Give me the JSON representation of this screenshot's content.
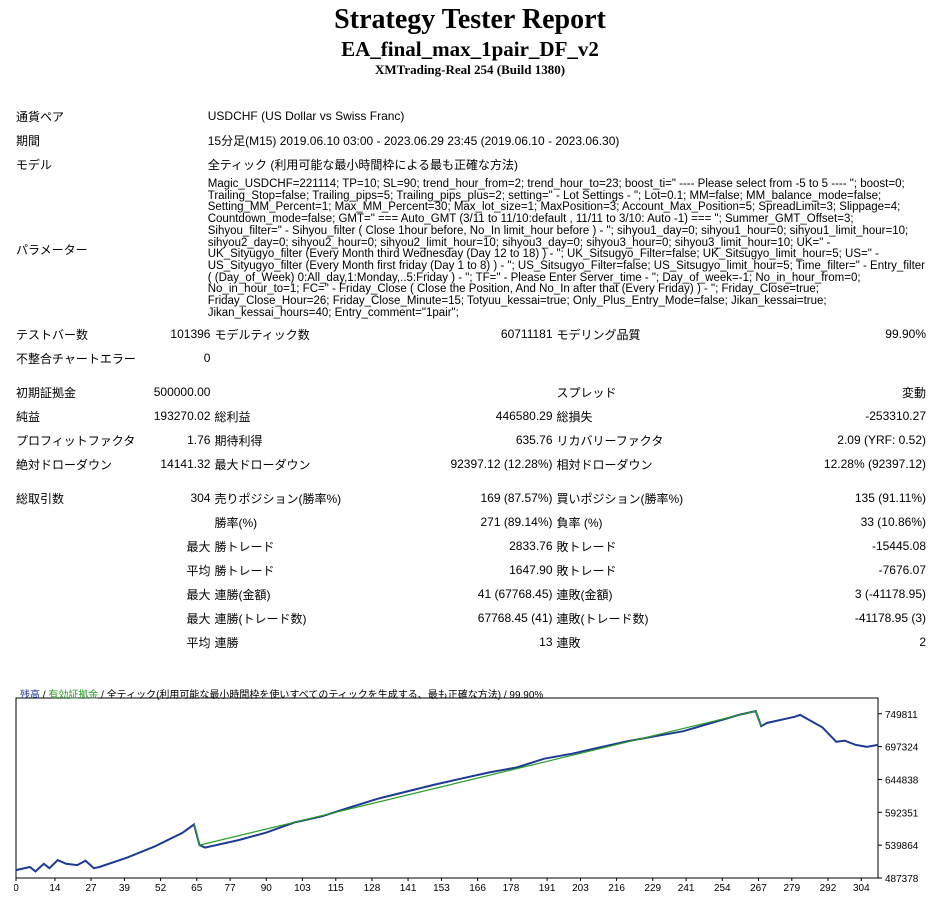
{
  "report": {
    "title": "Strategy Tester Report",
    "ea_name": "EA_final_max_1pair_DF_v2",
    "server": "XMTrading-Real 254 (Build 1380)"
  },
  "info": {
    "symbol_label": "通貨ペア",
    "symbol_value": "USDCHF (US Dollar vs Swiss Franc)",
    "period_label": "期間",
    "period_value": "15分足(M15) 2019.06.10 03:00 - 2023.06.29 23:45 (2019.06.10 - 2023.06.30)",
    "model_label": "モデル",
    "model_value": "全ティック (利用可能な最小時間枠による最も正確な方法)",
    "params_label": "パラメーター",
    "params_value": "Magic_USDCHF=221114; TP=10; SL=90; trend_hour_from=2; trend_hour_to=23; boost_ti=\" ---- Please select from -5 to 5 ---- \"; boost=0; Trailing_Stop=false; Trailing_pips=5; Trailing_pips_plus=2; setting=\" - Lot Settings - \"; Lot=0.1; MM=false; MM_balance_mode=false; Setting_MM_Percent=1; Max_MM_Percent=30; Max_lot_size=1; MaxPosition=3; Account_Max_Position=5; SpreadLimit=3; Slippage=4; Countdown_mode=false; GMT=\" === Auto_GMT (3/11 to 11/10:default , 11/11 to 3/10: Auto -1) === \"; Summer_GMT_Offset=3; Sihyou_filter=\" - Sihyou_filter ( Close 1hour before, No_In limit_hour before ) - \"; sihyou1_day=0; sihyou1_hour=0; sihyou1_limit_hour=10; sihyou2_day=0; sihyou2_hour=0; sihyou2_limit_hour=10; sihyou3_day=0; sihyou3_hour=0; sihyou3_limit_hour=10; UK=\" - UK_Sityugyo_filter (Every Month third Wednesday (Day 12 to 18) ) - \"; UK_Sitsugyo_Filter=false; UK_Sitsugyo_limit_hour=5; US=\" - US_Sityugyo_filter (Every Month first friday (Day 1 to 8) ) - \"; US_Sitsugyo_Filter=false; US_Sitsugyo_limit_hour=5; Time_filter=\" - Entry_filter ( (Day_of_Week) 0:All_day,1:Monday,..5:Friday ) - \"; TF=\" - Please Enter Server_time - \"; Day_of_week=-1; No_in_hour_from=0; No_in_hour_to=1; FC=\" - Friday_Close ( Close the Position, And No_In after that (Every Friday) ) - \"; Friday_Close=true; Friday_Close_Hour=26; Friday_Close_Minute=15; Totyuu_kessai=true; Only_Plus_Entry_Mode=false; Jikan_kessai=true; Jikan_kessai_hours=40; Entry_comment=\"1pair\";"
  },
  "stats": {
    "bars_label": "テストバー数",
    "bars_value": "101396",
    "ticks_label": "モデルティック数",
    "ticks_value": "60711181",
    "quality_label": "モデリング品質",
    "quality_value": "99.90%",
    "mismatch_label": "不整合チャートエラー",
    "mismatch_value": "0",
    "deposit_label": "初期証拠金",
    "deposit_value": "500000.00",
    "spread_label": "スプレッド",
    "spread_value": "変動",
    "net_label": "純益",
    "net_value": "193270.02",
    "gross_profit_label": "総利益",
    "gross_profit_value": "446580.29",
    "gross_loss_label": "総損失",
    "gross_loss_value": "-253310.27",
    "pf_label": "プロフィットファクタ",
    "pf_value": "1.76",
    "payoff_label": "期待利得",
    "payoff_value": "635.76",
    "recovery_label": "リカバリーファクタ",
    "recovery_value": "2.09 (YRF: 0.52)",
    "abs_dd_label": "絶対ドローダウン",
    "abs_dd_value": "14141.32",
    "max_dd_label": "最大ドローダウン",
    "max_dd_value": "92397.12 (12.28%)",
    "rel_dd_label": "相対ドローダウン",
    "rel_dd_value": "12.28% (92397.12)",
    "trades_label": "総取引数",
    "trades_value": "304",
    "short_label": "売りポジション(勝率%)",
    "short_value": "169 (87.57%)",
    "long_label": "買いポジション(勝率%)",
    "long_value": "135 (91.11%)",
    "winrate_label": "勝率(%)",
    "winrate_value": "271 (89.14%)",
    "lossrate_label": "負率 (%)",
    "lossrate_value": "33 (10.86%)",
    "max_label": "最大",
    "avg_label": "平均",
    "largest_win_label": "勝トレード",
    "largest_win_value": "2833.76",
    "largest_loss_label": "敗トレード",
    "largest_loss_value": "-15445.08",
    "avg_win_label": "勝トレード",
    "avg_win_value": "1647.90",
    "avg_loss_label": "敗トレード",
    "avg_loss_value": "-7676.07",
    "max_consec_win_label": "連勝(金額)",
    "max_consec_win_value": "41 (67768.45)",
    "max_consec_loss_label": "連敗(金額)",
    "max_consec_loss_value": "3 (-41178.95)",
    "max_consec_profit_label": "連勝(トレード数)",
    "max_consec_profit_value": "67768.45 (41)",
    "max_consec_lossamt_label": "連敗(トレード数)",
    "max_consec_lossamt_value": "-41178.95 (3)",
    "avg_consec_win_label": "連勝",
    "avg_consec_win_value": "13",
    "avg_consec_loss_label": "連敗",
    "avg_consec_loss_value": "2"
  },
  "chart_legend": {
    "balance": "残高",
    "sep1": " / ",
    "equity": "有効証拠金",
    "sep2": " / ",
    "model": "全ティック(利用可能な最小時間枠を使いすべてのティックを生成する、最も正確な方法)",
    "sep3": " / ",
    "quality": "99.90%"
  },
  "chart_data": {
    "type": "line",
    "ylim": [
      487378,
      775000
    ],
    "xlim": [
      0,
      310
    ],
    "yticks": [
      749811,
      697324,
      644838,
      592351,
      539864,
      487378
    ],
    "xticks": [
      0,
      14,
      27,
      39,
      52,
      65,
      77,
      90,
      103,
      115,
      128,
      141,
      153,
      166,
      178,
      191,
      203,
      216,
      229,
      241,
      254,
      267,
      279,
      292,
      304
    ],
    "series": [
      {
        "color": "#1f3a93",
        "x": [
          0,
          5,
          7,
          10,
          12,
          15,
          18,
          22,
          25,
          28,
          30,
          40,
          50,
          60,
          64,
          66,
          68,
          80,
          90,
          100,
          110,
          120,
          130,
          140,
          150,
          160,
          170,
          180,
          190,
          200,
          210,
          220,
          230,
          240,
          250,
          260,
          266,
          268,
          270,
          280,
          282,
          290,
          295,
          298,
          302,
          306,
          310
        ],
        "values": [
          500000,
          505000,
          498000,
          510000,
          503000,
          516000,
          510000,
          508000,
          515000,
          503000,
          505000,
          520000,
          538000,
          560000,
          573000,
          540000,
          536000,
          548000,
          560000,
          576000,
          586000,
          600000,
          614000,
          625000,
          636000,
          646000,
          656000,
          664000,
          678000,
          686000,
          696000,
          706000,
          714000,
          722000,
          735000,
          748000,
          754000,
          730000,
          735000,
          745000,
          748000,
          728000,
          705000,
          707000,
          700000,
          697000,
          700000
        ]
      },
      {
        "color": "#2a9b2a",
        "x": [
          64,
          65,
          66,
          266,
          267,
          268
        ],
        "values": [
          573000,
          560000,
          540000,
          754000,
          742000,
          730000
        ]
      }
    ]
  }
}
